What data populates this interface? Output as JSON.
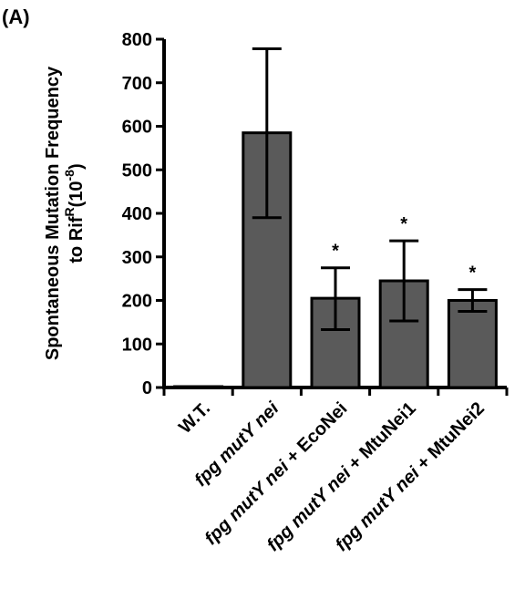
{
  "panel_label": "(A)",
  "chart_data": {
    "type": "bar",
    "ylabel_line1": "Spontaneous Mutation Frequency",
    "ylabel_line2_base": "to Rif",
    "ylabel_line2_sup": "R",
    "ylabel_line2_unit_open": "(10",
    "ylabel_line2_unit_sup": "-8",
    "ylabel_line2_unit_close": ")",
    "ylim": [
      0,
      800
    ],
    "yticks": [
      0,
      100,
      200,
      300,
      400,
      500,
      600,
      700,
      800
    ],
    "categories": [
      {
        "parts": [
          {
            "t": "W.T.",
            "i": false
          }
        ]
      },
      {
        "parts": [
          {
            "t": "fpg ",
            "i": true
          },
          {
            "t": "mutY nei",
            "i": true
          }
        ]
      },
      {
        "parts": [
          {
            "t": "fpg ",
            "i": true
          },
          {
            "t": "mutY nei",
            "i": true
          },
          {
            "t": " + EcoNei",
            "i": false
          }
        ]
      },
      {
        "parts": [
          {
            "t": "fpg ",
            "i": true
          },
          {
            "t": "mutY nei",
            "i": true
          },
          {
            "t": " + MtuNei1",
            "i": false
          }
        ]
      },
      {
        "parts": [
          {
            "t": "fpg ",
            "i": true
          },
          {
            "t": "mutY nei",
            "i": true
          },
          {
            "t": " + MtuNei2",
            "i": false
          }
        ]
      }
    ],
    "values": [
      1,
      585,
      205,
      245,
      200
    ],
    "error_upper": [
      1,
      778,
      275,
      337,
      225
    ],
    "error_lower": [
      1,
      390,
      133,
      153,
      175
    ],
    "annotations": [
      "",
      "",
      "*",
      "*",
      "*"
    ],
    "bar_color": "#5a5a5a",
    "grid": false,
    "legend": "none"
  }
}
